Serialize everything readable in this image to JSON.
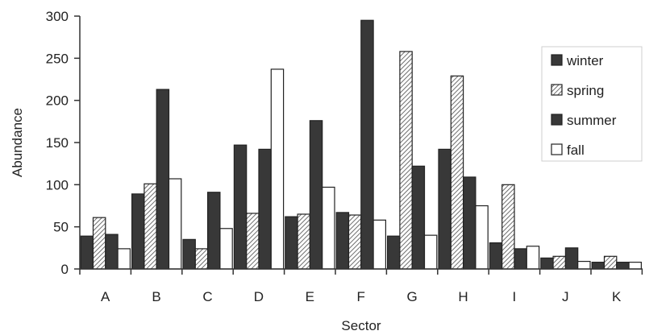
{
  "chart_data": {
    "type": "bar",
    "title": "",
    "xlabel": "Sector",
    "ylabel": "Abundance",
    "ylim": [
      0,
      300
    ],
    "yticks": [
      0,
      50,
      100,
      150,
      200,
      250,
      300
    ],
    "categories": [
      "A",
      "B",
      "C",
      "D",
      "E",
      "F",
      "G",
      "H",
      "I",
      "J",
      "K"
    ],
    "series": [
      {
        "name": "winter",
        "fill": "dark",
        "values": [
          39,
          89,
          35,
          147,
          62,
          67,
          39,
          142,
          31,
          13,
          8
        ]
      },
      {
        "name": "spring",
        "fill": "hatched",
        "values": [
          61,
          101,
          24,
          66,
          65,
          64,
          258,
          229,
          100,
          15,
          15
        ]
      },
      {
        "name": "summer",
        "fill": "dark",
        "values": [
          41,
          213,
          91,
          142,
          176,
          295,
          122,
          109,
          24,
          25,
          8
        ]
      },
      {
        "name": "fall",
        "fill": "white",
        "values": [
          24,
          107,
          48,
          237,
          97,
          58,
          40,
          75,
          27,
          9,
          8
        ]
      }
    ],
    "grid": false,
    "legend_position": "right",
    "colors": {
      "dark": "#383838",
      "light": "#ffffff",
      "hatch": "#8a8a8a",
      "axis": "#333333"
    }
  }
}
